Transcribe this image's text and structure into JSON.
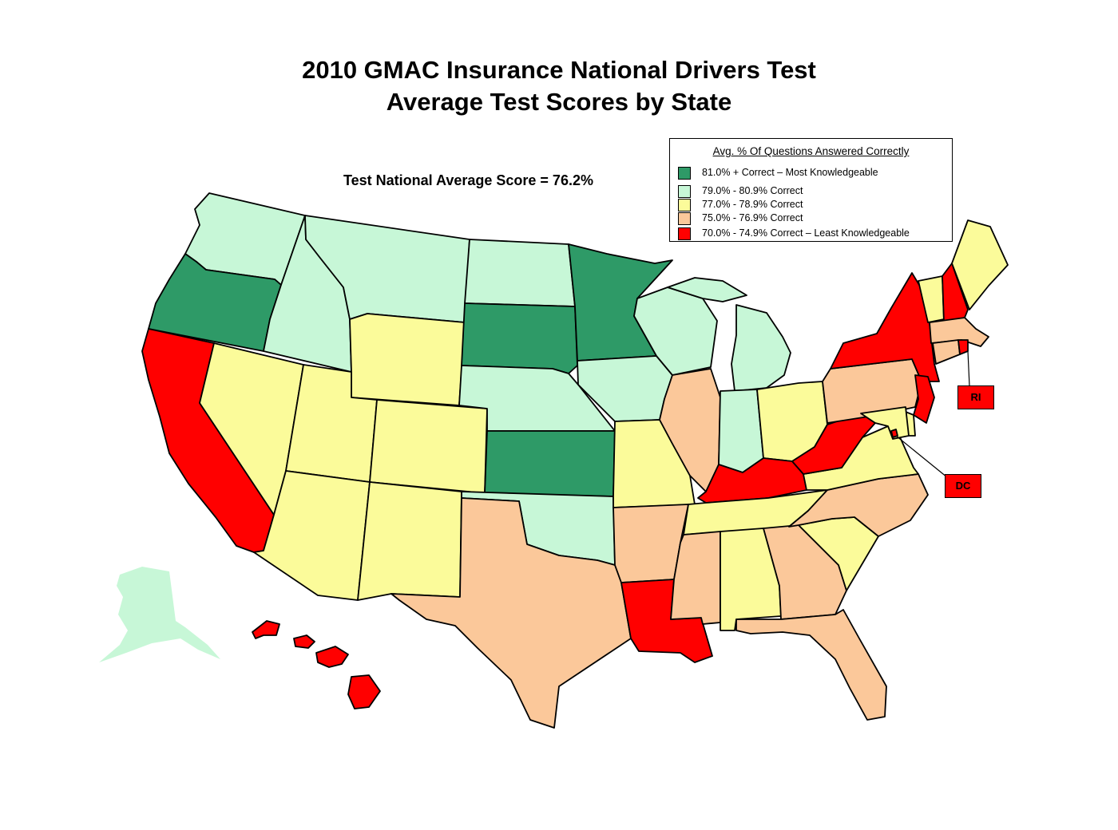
{
  "title": {
    "line1": "2010 GMAC Insurance National Drivers Test",
    "line2": "Average Test Scores by State"
  },
  "national_average": "Test National Average Score = 76.2%",
  "legend": {
    "title": "Avg. % Of Questions Answered Correctly",
    "items": [
      {
        "key": "top",
        "label": "81.0% + Correct – Most Knowledgeable",
        "color": "#2e9a67"
      },
      {
        "key": "high",
        "label": "79.0% - 80.9% Correct",
        "color": "#c7f7d7"
      },
      {
        "key": "mid",
        "label": "77.0% - 78.9% Correct",
        "color": "#fbfb9a"
      },
      {
        "key": "low",
        "label": "75.0% - 76.9% Correct",
        "color": "#fbc89a"
      },
      {
        "key": "bottom",
        "label": "70.0% - 74.9% Correct – Least Knowledgeable",
        "color": "#ff0000"
      }
    ]
  },
  "callouts": {
    "ri": "RI",
    "dc": "DC"
  },
  "states": {
    "WA": "high",
    "OR": "top",
    "CA": "bottom",
    "ID": "high",
    "NV": "mid",
    "MT": "high",
    "WY": "mid",
    "UT": "mid",
    "AZ": "mid",
    "CO": "mid",
    "NM": "mid",
    "ND": "high",
    "SD": "top",
    "NE": "high",
    "KS": "top",
    "OK": "high",
    "TX": "low",
    "MN": "top",
    "IA": "high",
    "MO": "mid",
    "AR": "low",
    "LA": "bottom",
    "WI": "high",
    "IL": "low",
    "MI": "high",
    "IN": "high",
    "OH": "mid",
    "KY": "bottom",
    "TN": "mid",
    "MS": "low",
    "AL": "mid",
    "GA": "low",
    "FL": "low",
    "SC": "mid",
    "NC": "low",
    "VA": "mid",
    "WV": "bottom",
    "PA": "low",
    "NY": "bottom",
    "VT": "mid",
    "NH": "bottom",
    "ME": "mid",
    "MA": "low",
    "CT": "low",
    "RI": "bottom",
    "NJ": "bottom",
    "DE": "mid",
    "MD": "mid",
    "DC": "bottom",
    "AK": "high",
    "HI": "bottom"
  }
}
